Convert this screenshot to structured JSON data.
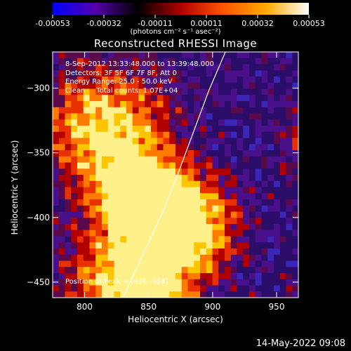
{
  "colorbar": {
    "ticks": [
      "-0.00053",
      "-0.00032",
      "-0.00011",
      "0.00011",
      "0.00032",
      "0.00053"
    ],
    "units": "(photons cm⁻² s⁻¹ asec⁻²)",
    "colors": [
      "#0000ff",
      "#5500aa",
      "#000000",
      "#b00000",
      "#ff5500",
      "#ffaa00",
      "#ffffff"
    ]
  },
  "chart_data": {
    "type": "heatmap",
    "title": "Reconstructed RHESSI Image",
    "xlabel": "Heliocentric X (arcsec)",
    "ylabel": "Heliocentric Y (arcsec)",
    "xlim": [
      775,
      967
    ],
    "ylim": [
      -462,
      -272
    ],
    "x_ticks": [
      800,
      850,
      900,
      950
    ],
    "y_ticks": [
      -300,
      -350,
      -400,
      -450
    ],
    "x_tick_labels": [
      "800",
      "850",
      "900",
      "950"
    ],
    "y_tick_labels": [
      "−300",
      "−350",
      "−400",
      "−450"
    ],
    "info_lines": [
      "8-Sep-2012 13:33:48.000 to 13:39:48.000",
      "Detectors: 3F 5F 6F 7F 8F, Att 0",
      "Energy Range: 25.0 - 50.0 keV",
      "Clean     Total counts: 1.07E+04"
    ],
    "peak_text": "Position of Peak = [836,-368]",
    "peak": [
      836,
      -368
    ],
    "limb": [
      [
        830,
        -462
      ],
      [
        845,
        -430
      ],
      [
        860,
        -398
      ],
      [
        873,
        -366
      ],
      [
        885,
        -334
      ],
      [
        897,
        -302
      ],
      [
        910,
        -272
      ]
    ]
  },
  "timestamp": "14-May-2022 09:08"
}
